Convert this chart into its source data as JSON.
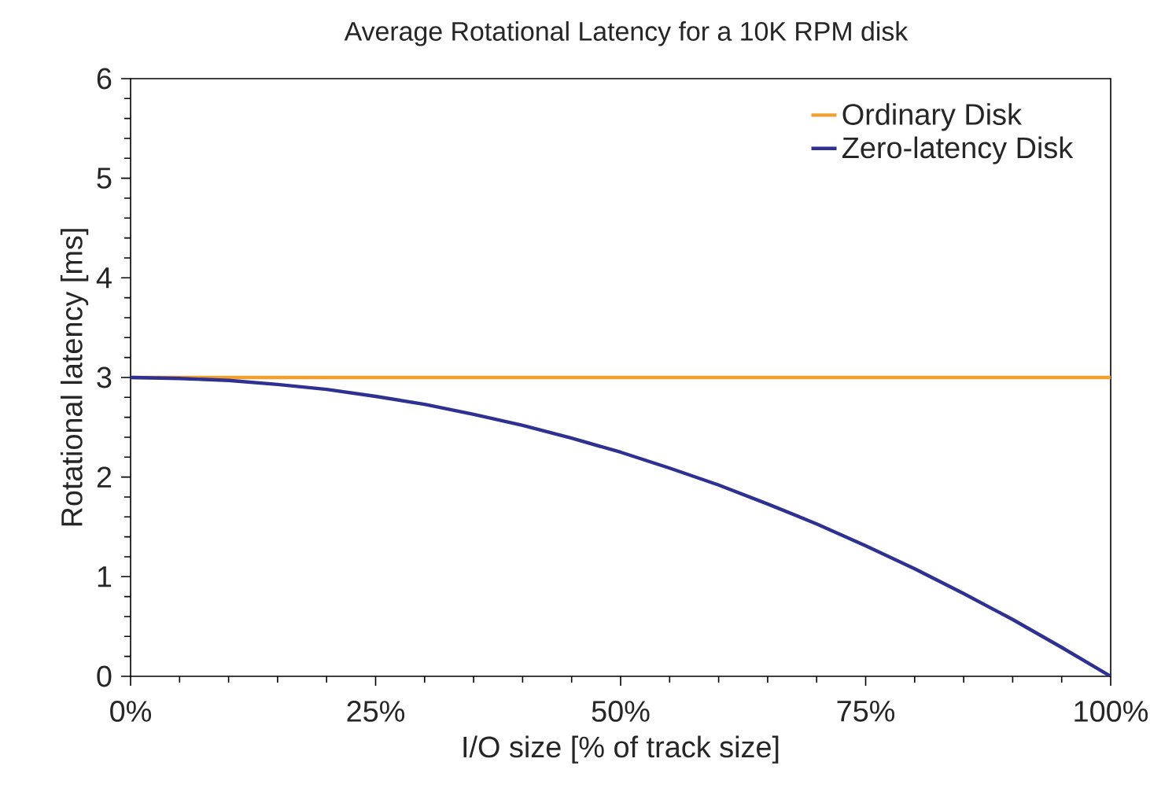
{
  "chart_data": {
    "type": "line",
    "title": "Average Rotational Latency for a 10K RPM disk",
    "xlabel": "I/O size [% of track size]",
    "ylabel": "Rotational latency [ms]",
    "x": [
      0,
      5,
      10,
      15,
      20,
      25,
      30,
      35,
      40,
      45,
      50,
      55,
      60,
      65,
      70,
      75,
      80,
      85,
      90,
      95,
      100
    ],
    "series": [
      {
        "name": "Ordinary Disk",
        "color": "#f0a030",
        "x": [
          0,
          100
        ],
        "values": [
          3,
          3
        ]
      },
      {
        "name": "Zero-latency Disk",
        "color": "#2e3192",
        "values": [
          3,
          2.99,
          2.97,
          2.93,
          2.88,
          2.81,
          2.73,
          2.63,
          2.52,
          2.39,
          2.25,
          2.09,
          1.92,
          1.73,
          1.53,
          1.31,
          1.08,
          0.83,
          0.57,
          0.29,
          0
        ]
      }
    ],
    "xlim": [
      0,
      100
    ],
    "ylim": [
      0,
      6
    ],
    "xticks": [
      {
        "value": 0,
        "label": "0%"
      },
      {
        "value": 25,
        "label": "25%"
      },
      {
        "value": 50,
        "label": "50%"
      },
      {
        "value": 75,
        "label": "75%"
      },
      {
        "value": 100,
        "label": "100%"
      }
    ],
    "yticks": [
      0,
      1,
      2,
      3,
      4,
      5,
      6
    ],
    "grid": false,
    "legend": "top right",
    "marker": "none",
    "line_style": "solid"
  }
}
